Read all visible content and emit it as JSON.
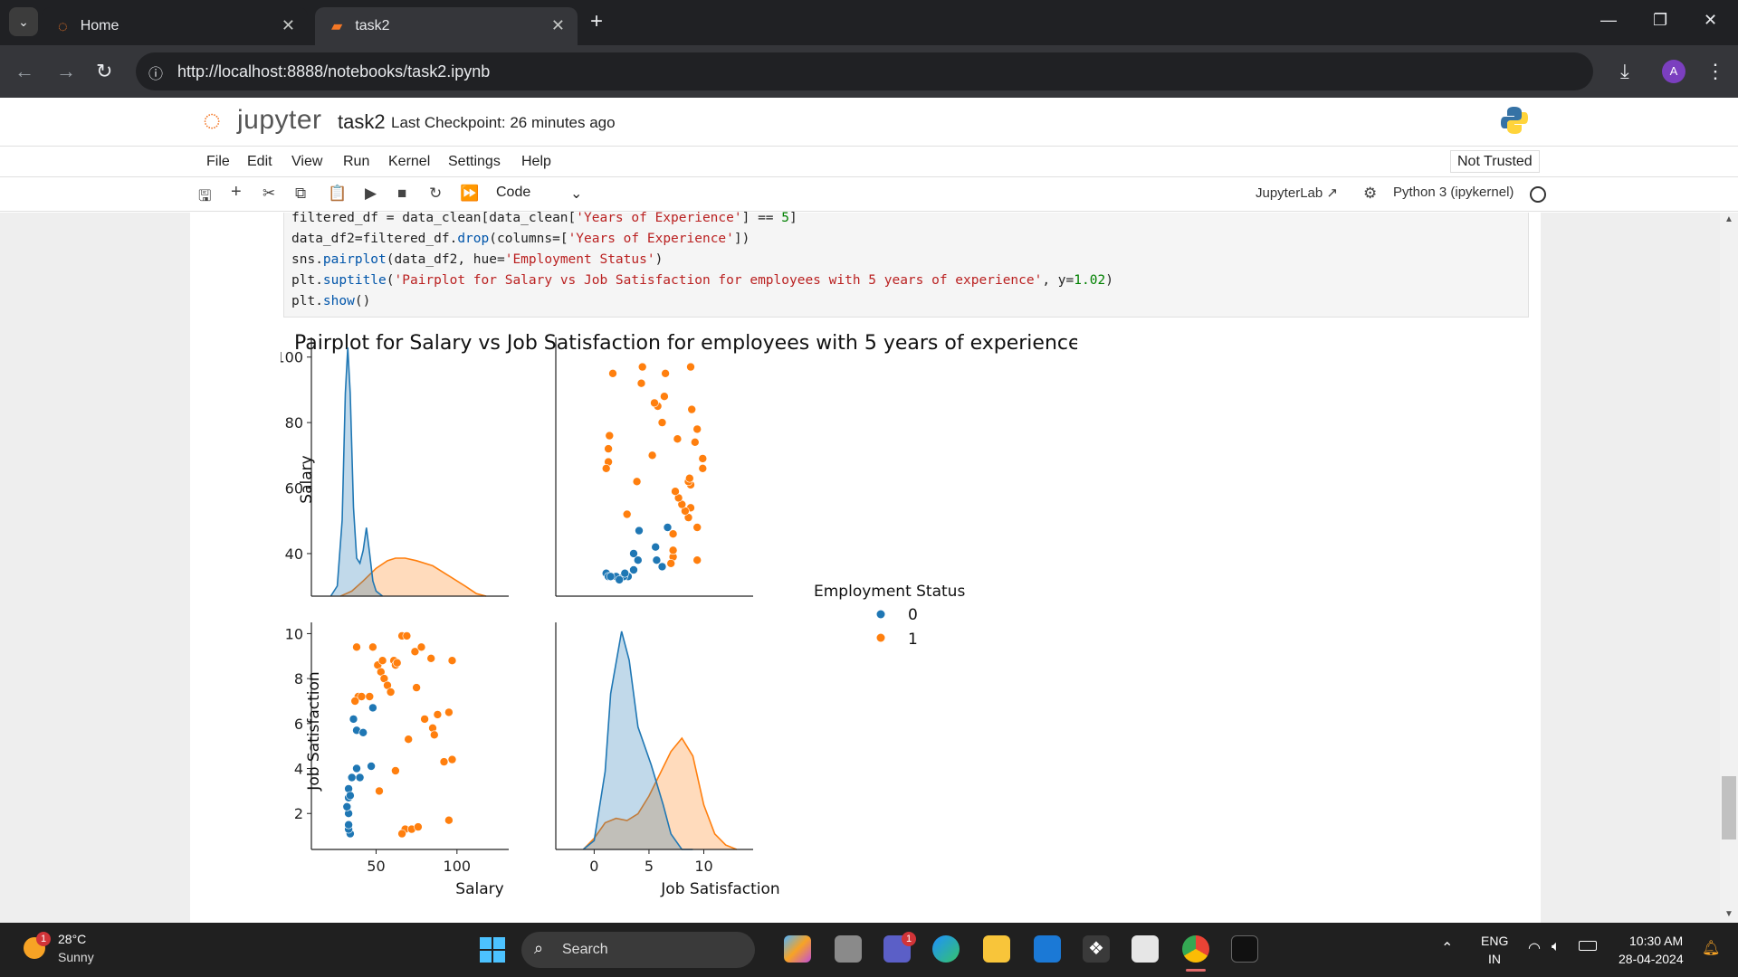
{
  "browser": {
    "tabs": [
      {
        "title": "Home"
      },
      {
        "title": "task2"
      }
    ],
    "new_tab": "+",
    "url": "http://localhost:8888/notebooks/task2.ipynb",
    "avatar": "A"
  },
  "jupyter": {
    "logo_text": "jupyter",
    "notebook_name": "task2",
    "checkpoint": "Last Checkpoint: 26 minutes ago",
    "trust_status": "Not Trusted",
    "menu": [
      "File",
      "Edit",
      "View",
      "Run",
      "Kernel",
      "Settings",
      "Help"
    ],
    "cell_type": "Code",
    "jupyterlab_link": "JupyterLab",
    "kernel": "Python 3 (ipykernel)"
  },
  "code": {
    "line1": [
      "filtered_df = data_clean[data_clean[",
      "'Years of Experience'",
      "] == ",
      "5",
      "]"
    ],
    "line2": [
      "data_df2=filtered_df.",
      "drop",
      "(columns=[",
      "'Years of Experience'",
      "])"
    ],
    "line3": [
      "sns.",
      "pairplot",
      "(data_df2, hue=",
      "'Employment Status'",
      ")"
    ],
    "line4": [
      "plt.",
      "suptitle",
      "(",
      "'Pairplot for Salary vs Job Satisfaction for employees with 5 years of experience'",
      ", y=",
      "1.02",
      ")"
    ],
    "line5": [
      "plt.",
      "show",
      "()"
    ]
  },
  "chart_data": {
    "type": "scatter",
    "title": "Pairplot for Salary vs Job Satisfaction for employees with 5 years of experience",
    "variables": [
      "Salary",
      "Job Satisfaction"
    ],
    "hue": "Employment Status",
    "legend": {
      "title": "Employment Status",
      "entries": [
        "0",
        "1"
      ],
      "placement": "right"
    },
    "colors": {
      "0": "#1f77b4",
      "1": "#ff7f0e"
    },
    "axes": {
      "salary_ticks": [
        40,
        60,
        80,
        100
      ],
      "salary_xticks": [
        50,
        100
      ],
      "job_ticks": [
        2,
        4,
        6,
        8,
        10
      ],
      "job_xticks": [
        0,
        5,
        10
      ],
      "salary_range": [
        10,
        132
      ],
      "job_range": [
        -3.5,
        14.5
      ]
    },
    "series": [
      {
        "name": "0",
        "points": [
          {
            "salary": 36,
            "job": 6.2
          },
          {
            "salary": 38,
            "job": 5.7
          },
          {
            "salary": 42,
            "job": 5.6
          },
          {
            "salary": 48,
            "job": 6.7
          },
          {
            "salary": 38,
            "job": 4.0
          },
          {
            "salary": 33,
            "job": 3.1
          },
          {
            "salary": 33,
            "job": 2.7
          },
          {
            "salary": 34,
            "job": 2.8
          },
          {
            "salary": 33,
            "job": 2.0
          },
          {
            "salary": 34,
            "job": 1.1
          },
          {
            "salary": 33,
            "job": 1.3
          },
          {
            "salary": 32,
            "job": 2.3
          },
          {
            "salary": 33,
            "job": 1.5
          },
          {
            "salary": 35,
            "job": 3.6
          },
          {
            "salary": 47,
            "job": 4.1
          },
          {
            "salary": 40,
            "job": 3.6
          }
        ]
      },
      {
        "name": "1",
        "points": [
          {
            "salary": 38,
            "job": 9.4
          },
          {
            "salary": 48,
            "job": 9.4
          },
          {
            "salary": 39,
            "job": 7.2
          },
          {
            "salary": 41,
            "job": 7.2
          },
          {
            "salary": 46,
            "job": 7.2
          },
          {
            "salary": 37,
            "job": 7.0
          },
          {
            "salary": 51,
            "job": 8.6
          },
          {
            "salary": 54,
            "job": 8.8
          },
          {
            "salary": 53,
            "job": 8.3
          },
          {
            "salary": 55,
            "job": 8.0
          },
          {
            "salary": 57,
            "job": 7.7
          },
          {
            "salary": 59,
            "job": 7.4
          },
          {
            "salary": 61,
            "job": 8.8
          },
          {
            "salary": 62,
            "job": 8.6
          },
          {
            "salary": 63,
            "job": 8.7
          },
          {
            "salary": 66,
            "job": 9.9
          },
          {
            "salary": 69,
            "job": 9.9
          },
          {
            "salary": 74,
            "job": 9.2
          },
          {
            "salary": 78,
            "job": 9.4
          },
          {
            "salary": 84,
            "job": 8.9
          },
          {
            "salary": 97,
            "job": 8.8
          },
          {
            "salary": 75,
            "job": 7.6
          },
          {
            "salary": 80,
            "job": 6.2
          },
          {
            "salary": 88,
            "job": 6.4
          },
          {
            "salary": 95,
            "job": 6.5
          },
          {
            "salary": 85,
            "job": 5.8
          },
          {
            "salary": 86,
            "job": 5.5
          },
          {
            "salary": 70,
            "job": 5.3
          },
          {
            "salary": 62,
            "job": 3.9
          },
          {
            "salary": 92,
            "job": 4.3
          },
          {
            "salary": 97,
            "job": 4.4
          },
          {
            "salary": 52,
            "job": 3.0
          },
          {
            "salary": 68,
            "job": 1.3
          },
          {
            "salary": 72,
            "job": 1.3
          },
          {
            "salary": 76,
            "job": 1.4
          },
          {
            "salary": 66,
            "job": 1.1
          },
          {
            "salary": 95,
            "job": 1.7
          }
        ]
      }
    ],
    "kde": {
      "salary_0": [
        [
          22,
          0
        ],
        [
          26,
          0.04
        ],
        [
          29,
          0.3
        ],
        [
          31,
          0.8
        ],
        [
          32.5,
          0.98
        ],
        [
          34,
          0.8
        ],
        [
          36,
          0.35
        ],
        [
          38,
          0.15
        ],
        [
          40,
          0.13
        ],
        [
          42,
          0.18
        ],
        [
          44,
          0.27
        ],
        [
          46,
          0.17
        ],
        [
          48,
          0.06
        ],
        [
          50,
          0.02
        ],
        [
          54,
          0
        ]
      ],
      "salary_1": [
        [
          28,
          0
        ],
        [
          35,
          0.02
        ],
        [
          42,
          0.06
        ],
        [
          50,
          0.11
        ],
        [
          57,
          0.14
        ],
        [
          62,
          0.15
        ],
        [
          68,
          0.15
        ],
        [
          75,
          0.14
        ],
        [
          85,
          0.12
        ],
        [
          95,
          0.08
        ],
        [
          105,
          0.04
        ],
        [
          112,
          0.01
        ],
        [
          118,
          0
        ]
      ],
      "job_0": [
        [
          -1,
          0
        ],
        [
          0,
          0.04
        ],
        [
          1,
          0.35
        ],
        [
          1.5,
          0.7
        ],
        [
          2.5,
          0.98
        ],
        [
          3.2,
          0.85
        ],
        [
          4,
          0.55
        ],
        [
          5.2,
          0.38
        ],
        [
          6.3,
          0.2
        ],
        [
          7,
          0.07
        ],
        [
          8,
          0
        ],
        [
          9,
          0
        ]
      ],
      "job_1": [
        [
          -1,
          0
        ],
        [
          0,
          0.05
        ],
        [
          1,
          0.12
        ],
        [
          2,
          0.14
        ],
        [
          3,
          0.13
        ],
        [
          4,
          0.16
        ],
        [
          5,
          0.24
        ],
        [
          6,
          0.34
        ],
        [
          7,
          0.44
        ],
        [
          8,
          0.5
        ],
        [
          9,
          0.42
        ],
        [
          10,
          0.2
        ],
        [
          11,
          0.07
        ],
        [
          12,
          0.02
        ],
        [
          13,
          0
        ]
      ]
    }
  },
  "taskbar": {
    "weather_temp": "28°C",
    "weather_desc": "Sunny",
    "weather_badge": "1",
    "search": "Search",
    "teams_badge": "1",
    "lang": "ENG",
    "region": "IN",
    "time": "10:30 AM",
    "date": "28-04-2024"
  }
}
